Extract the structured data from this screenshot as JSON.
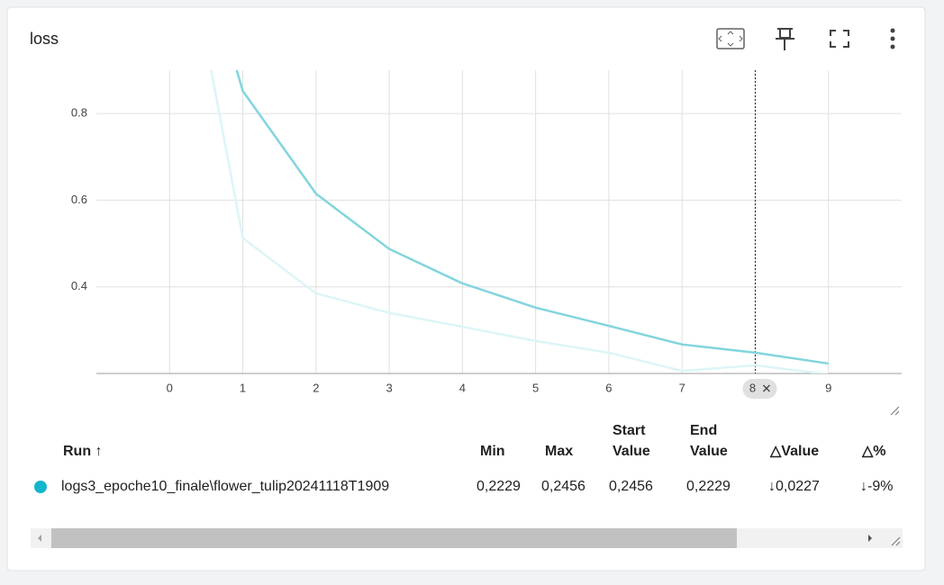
{
  "chart_data": {
    "type": "line",
    "title": "loss",
    "x": [
      0,
      1,
      2,
      3,
      4,
      5,
      6,
      7,
      8,
      9
    ],
    "series": [
      {
        "color": "#dcf5f7",
        "values": [
          1.41,
          0.5125,
          0.385,
          0.34,
          0.308,
          0.275,
          0.248,
          0.206,
          0.219,
          0.198
        ]
      },
      {
        "color": "#82d5dd",
        "values": [
          1.43,
          0.852,
          0.615,
          0.4875,
          0.408,
          0.352,
          0.31,
          0.267,
          0.248,
          0.223
        ]
      }
    ],
    "xlim": [
      -1,
      10
    ],
    "xticks": [
      0,
      1,
      2,
      3,
      4,
      5,
      6,
      7,
      8,
      9
    ],
    "ylim": [
      0.2,
      0.9
    ],
    "yticks": [
      0.4,
      0.6,
      0.8
    ],
    "grid": true,
    "hover_x": 8
  },
  "table": {
    "header": [
      "Run ↑",
      "Min",
      "Max",
      [
        "Start",
        "Value"
      ],
      [
        "End",
        "Value"
      ],
      "△Value",
      "△%"
    ],
    "rows": [
      [
        "logs3_epoche10_finale\\flower_tulip20241118T1909",
        "0,2229",
        "0,2456",
        "0,2456",
        "0,2229",
        "↓0,0227",
        "↓-9%"
      ]
    ],
    "run_color": "#12b5cb"
  }
}
